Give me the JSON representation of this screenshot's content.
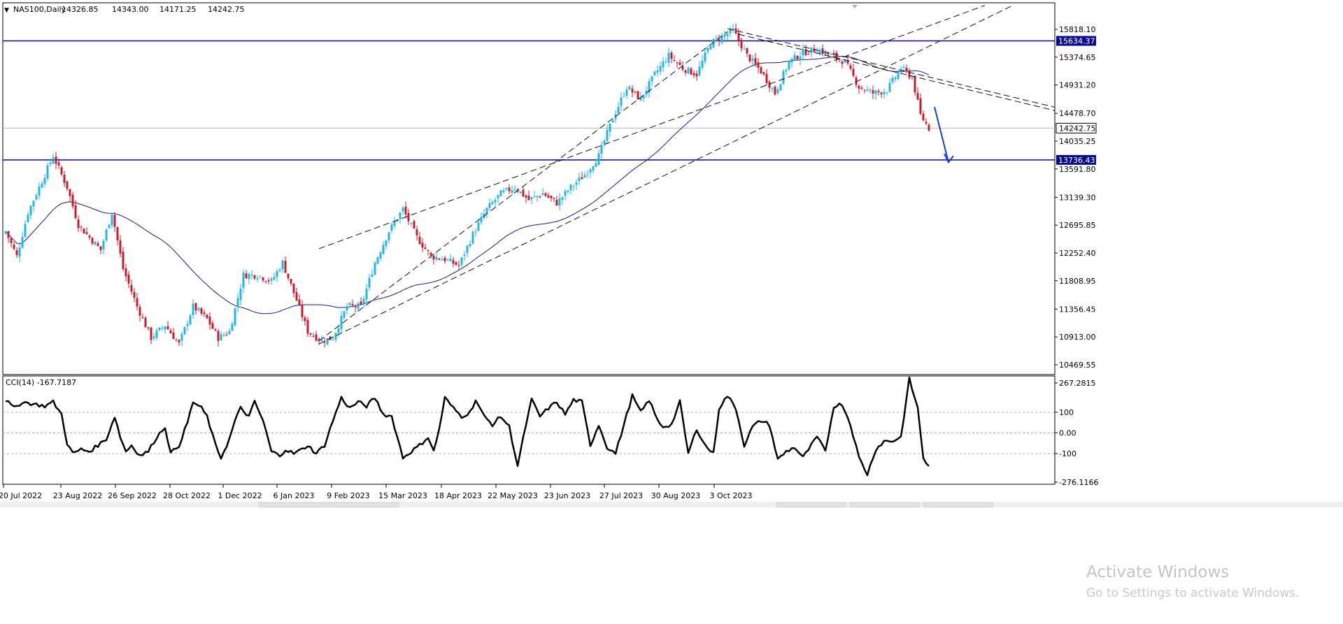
{
  "chart_data": [
    {
      "type": "candlestick",
      "symbol": "NAS100,Daily",
      "ohlc_header": {
        "open": "14326.85",
        "high": "14343.00",
        "low": "14171.25",
        "close": "14242.75"
      },
      "y_ticks": [
        "15818.10",
        "15374.65",
        "14931.20",
        "14478.70",
        "14035.25",
        "13591.80",
        "13139.30",
        "12695.85",
        "12252.40",
        "11808.95",
        "11356.45",
        "10913.00",
        "10469.55"
      ],
      "y_tick_values": [
        15818.1,
        15374.65,
        14931.2,
        14478.7,
        14035.25,
        13591.8,
        13139.3,
        12695.85,
        12252.4,
        11808.95,
        11356.45,
        10913.0,
        10469.55
      ],
      "ylim": [
        10400,
        16190
      ],
      "x_ticks": [
        "20 Jul 2022",
        "23 Aug 2022",
        "26 Sep 2022",
        "28 Oct 2022",
        "1 Dec 2022",
        "6 Jan 2023",
        "9 Feb 2023",
        "15 Mar 2023",
        "18 Apr 2023",
        "22 May 2023",
        "23 Jun 2023",
        "27 Jul 2023",
        "30 Aug 2023",
        "3 Oct 2023"
      ],
      "horizontal_levels": [
        {
          "label": "15634.37",
          "value": 15634.37,
          "color": "#0a0a8c"
        },
        {
          "label": "13736.43",
          "value": 13736.43,
          "color": "#0a0a8c"
        }
      ],
      "current_price": {
        "label": "14242.75",
        "value": 14242.75
      },
      "colors": {
        "bull": "#26b4e6",
        "bear": "#c41e2e",
        "ma": "#1a1a7a",
        "level_line": "#0a0a8c",
        "arrow": "#1040d0",
        "price_tag_bg": "#0a0a8c"
      },
      "anchors": [
        [
          0,
          12600
        ],
        [
          4,
          12200
        ],
        [
          8,
          12900
        ],
        [
          12,
          13300
        ],
        [
          17,
          13800
        ],
        [
          22,
          13300
        ],
        [
          26,
          12700
        ],
        [
          30,
          12500
        ],
        [
          34,
          12300
        ],
        [
          38,
          12900
        ],
        [
          42,
          12000
        ],
        [
          47,
          11400
        ],
        [
          52,
          10900
        ],
        [
          57,
          11100
        ],
        [
          62,
          10800
        ],
        [
          67,
          11400
        ],
        [
          72,
          11200
        ],
        [
          76,
          10900
        ],
        [
          80,
          11000
        ],
        [
          85,
          11900
        ],
        [
          90,
          11900
        ],
        [
          95,
          11800
        ],
        [
          99,
          12100
        ],
        [
          104,
          11500
        ],
        [
          108,
          11000
        ],
        [
          113,
          10850
        ],
        [
          117,
          10900
        ],
        [
          122,
          11400
        ],
        [
          127,
          11400
        ],
        [
          132,
          12100
        ],
        [
          137,
          12600
        ],
        [
          142,
          12950
        ],
        [
          147,
          12500
        ],
        [
          152,
          12200
        ],
        [
          157,
          12150
        ],
        [
          162,
          12050
        ],
        [
          167,
          12550
        ],
        [
          172,
          12950
        ],
        [
          177,
          13200
        ],
        [
          182,
          13300
        ],
        [
          187,
          13100
        ],
        [
          192,
          13200
        ],
        [
          197,
          13050
        ],
        [
          202,
          13300
        ],
        [
          207,
          13500
        ],
        [
          212,
          13800
        ],
        [
          217,
          14400
        ],
        [
          222,
          14900
        ],
        [
          227,
          14700
        ],
        [
          232,
          15100
        ],
        [
          237,
          15400
        ],
        [
          242,
          15200
        ],
        [
          247,
          15100
        ],
        [
          252,
          15600
        ],
        [
          256,
          15700
        ],
        [
          260,
          15800
        ],
        [
          265,
          15400
        ],
        [
          270,
          15150
        ],
        [
          275,
          14800
        ],
        [
          280,
          15300
        ],
        [
          285,
          15450
        ],
        [
          290,
          15500
        ],
        [
          295,
          15400
        ],
        [
          300,
          15300
        ],
        [
          305,
          14900
        ],
        [
          310,
          14800
        ],
        [
          315,
          14850
        ],
        [
          320,
          15200
        ],
        [
          324,
          15050
        ],
        [
          327,
          14450
        ],
        [
          330,
          14242
        ]
      ],
      "bar_count": 331,
      "ma_period": 50,
      "channels": [
        {
          "start": {
            "bar": 112,
            "price": 10850
          },
          "end": {
            "bar": 258,
            "price": 15780
          }
        },
        {
          "start": {
            "bar": 112,
            "price": 12320
          },
          "end": {
            "bar": 350,
            "price": 16200
          }
        },
        {
          "start": {
            "bar": 112,
            "price": 10800
          },
          "end": {
            "bar": 360,
            "price": 16200
          }
        },
        {
          "start": {
            "bar": 258,
            "price": 15830
          },
          "end": {
            "bar": 455,
            "price": 13720
          }
        },
        {
          "start": {
            "bar": 262,
            "price": 15740
          },
          "end": {
            "bar": 455,
            "price": 13660
          }
        }
      ],
      "arrow": {
        "from": {
          "bar": 332,
          "price": 14580
        },
        "to": {
          "bar": 337,
          "price": 13700
        }
      }
    },
    {
      "type": "line",
      "title": "CCI(14) -167.7187",
      "indicator_name": "CCI(14)",
      "indicator_value": "-167.7187",
      "y_ticks": [
        "267.2815",
        "100",
        "0.00",
        "-100",
        "-276.1166"
      ],
      "y_tick_values": [
        267.2815,
        100,
        0,
        -100,
        -276.1166
      ],
      "ylim": [
        -290,
        280
      ],
      "levels": [
        100,
        0,
        -100
      ],
      "anchors": [
        [
          0,
          160
        ],
        [
          3,
          120
        ],
        [
          6,
          150
        ],
        [
          10,
          140
        ],
        [
          14,
          130
        ],
        [
          17,
          150
        ],
        [
          20,
          90
        ],
        [
          22,
          -50
        ],
        [
          24,
          -100
        ],
        [
          27,
          -80
        ],
        [
          30,
          -90
        ],
        [
          33,
          -60
        ],
        [
          36,
          -30
        ],
        [
          39,
          80
        ],
        [
          41,
          -20
        ],
        [
          43,
          -90
        ],
        [
          45,
          -60
        ],
        [
          48,
          -110
        ],
        [
          51,
          -90
        ],
        [
          54,
          -20
        ],
        [
          57,
          30
        ],
        [
          59,
          -100
        ],
        [
          62,
          -60
        ],
        [
          65,
          50
        ],
        [
          67,
          150
        ],
        [
          70,
          120
        ],
        [
          72,
          80
        ],
        [
          75,
          -60
        ],
        [
          77,
          -120
        ],
        [
          80,
          -30
        ],
        [
          82,
          60
        ],
        [
          84,
          120
        ],
        [
          87,
          80
        ],
        [
          89,
          150
        ],
        [
          92,
          60
        ],
        [
          95,
          -90
        ],
        [
          98,
          -110
        ],
        [
          100,
          -80
        ],
        [
          103,
          -100
        ],
        [
          106,
          -80
        ],
        [
          108,
          -60
        ],
        [
          111,
          -100
        ],
        [
          114,
          -60
        ],
        [
          117,
          60
        ],
        [
          120,
          170
        ],
        [
          123,
          120
        ],
        [
          126,
          150
        ],
        [
          129,
          130
        ],
        [
          132,
          170
        ],
        [
          135,
          90
        ],
        [
          138,
          80
        ],
        [
          142,
          -120
        ],
        [
          145,
          -90
        ],
        [
          148,
          -60
        ],
        [
          151,
          -20
        ],
        [
          153,
          -90
        ],
        [
          155,
          20
        ],
        [
          157,
          170
        ],
        [
          160,
          120
        ],
        [
          163,
          80
        ],
        [
          166,
          100
        ],
        [
          168,
          160
        ],
        [
          171,
          80
        ],
        [
          174,
          40
        ],
        [
          177,
          80
        ],
        [
          180,
          30
        ],
        [
          183,
          -160
        ],
        [
          186,
          40
        ],
        [
          188,
          160
        ],
        [
          191,
          80
        ],
        [
          194,
          120
        ],
        [
          197,
          150
        ],
        [
          200,
          90
        ],
        [
          203,
          160
        ],
        [
          206,
          150
        ],
        [
          209,
          -60
        ],
        [
          212,
          40
        ],
        [
          215,
          -70
        ],
        [
          218,
          -100
        ],
        [
          221,
          40
        ],
        [
          224,
          180
        ],
        [
          227,
          100
        ],
        [
          230,
          160
        ],
        [
          233,
          60
        ],
        [
          235,
          30
        ],
        [
          238,
          40
        ],
        [
          241,
          150
        ],
        [
          244,
          -100
        ],
        [
          247,
          20
        ],
        [
          250,
          -60
        ],
        [
          253,
          -100
        ],
        [
          255,
          120
        ],
        [
          258,
          180
        ],
        [
          261,
          120
        ],
        [
          264,
          -60
        ],
        [
          267,
          30
        ],
        [
          270,
          60
        ],
        [
          273,
          40
        ],
        [
          276,
          -130
        ],
        [
          279,
          -90
        ],
        [
          282,
          -70
        ],
        [
          285,
          -120
        ],
        [
          288,
          -60
        ],
        [
          290,
          -20
        ],
        [
          293,
          -90
        ],
        [
          296,
          130
        ],
        [
          299,
          140
        ],
        [
          302,
          40
        ],
        [
          305,
          -120
        ],
        [
          308,
          -200
        ],
        [
          311,
          -80
        ],
        [
          314,
          -40
        ],
        [
          317,
          -40
        ],
        [
          320,
          -20
        ],
        [
          323,
          260
        ],
        [
          326,
          120
        ],
        [
          328,
          -120
        ],
        [
          330,
          -167
        ]
      ]
    }
  ],
  "watermark": {
    "line1": "Activate Windows",
    "line2": "Go to Settings to activate Windows."
  }
}
